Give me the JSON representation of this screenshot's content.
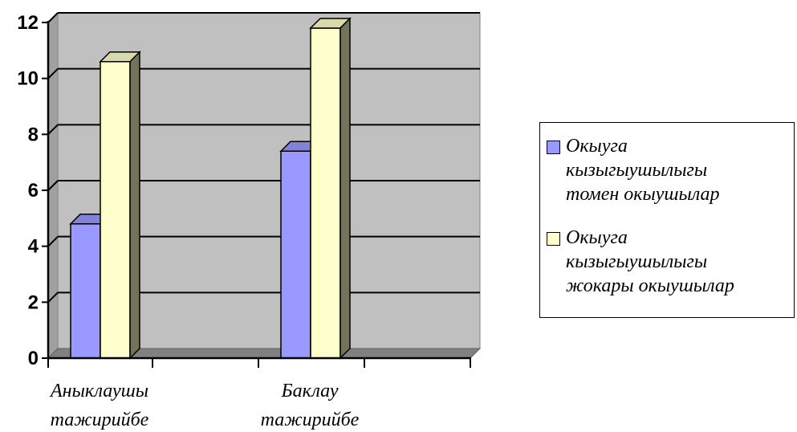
{
  "chart_data": {
    "type": "bar",
    "categories": [
      "Аныклаушы тажирийбе",
      "Баклау тажирийбе"
    ],
    "category_lines": [
      [
        "Аныклаушы",
        "тажирийбе"
      ],
      [
        "Баклау",
        "тажирийбе"
      ]
    ],
    "series": [
      {
        "name": "Окыуга кызыгыушылыгы томен окыушылар",
        "values": [
          4.8,
          7.4
        ],
        "color": "#9999ff"
      },
      {
        "name": "Окыуга кызыгыушылыгы жокары окыушылар",
        "values": [
          10.6,
          11.8
        ],
        "color": "#ffffcc"
      }
    ],
    "ylim": [
      0,
      12
    ],
    "yticks": [
      0,
      2,
      4,
      6,
      8,
      10,
      12
    ],
    "grid": true,
    "legend_position": "right",
    "style": "3d-clustered-column",
    "plot_background": "#c0c0c0",
    "floor_color": "#808080"
  },
  "legend": {
    "items": [
      {
        "lines": [
          "Окыуга",
          "кызыгыушылыгы",
          "томен окыушылар"
        ]
      },
      {
        "lines": [
          "Окыуга",
          "кызыгыушылыгы",
          "жокары окыушылар"
        ]
      }
    ]
  }
}
